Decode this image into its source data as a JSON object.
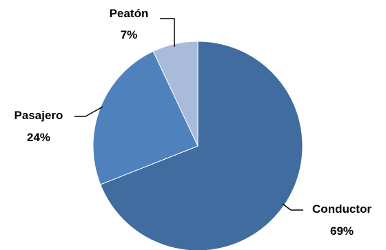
{
  "chart_data": {
    "type": "pie",
    "title": "",
    "slices": [
      {
        "label": "Conductor",
        "value": 69,
        "value_label": "69%",
        "color": "#416c9f"
      },
      {
        "label": "Pasajero",
        "value": 24,
        "value_label": "24%",
        "color": "#4f81bd"
      },
      {
        "label": "Peatón",
        "value": 7,
        "value_label": "7%",
        "color": "#a9bbdb"
      }
    ],
    "start_angle": "12 o'clock, clockwise",
    "legend": "none (data labels with leader lines)"
  }
}
